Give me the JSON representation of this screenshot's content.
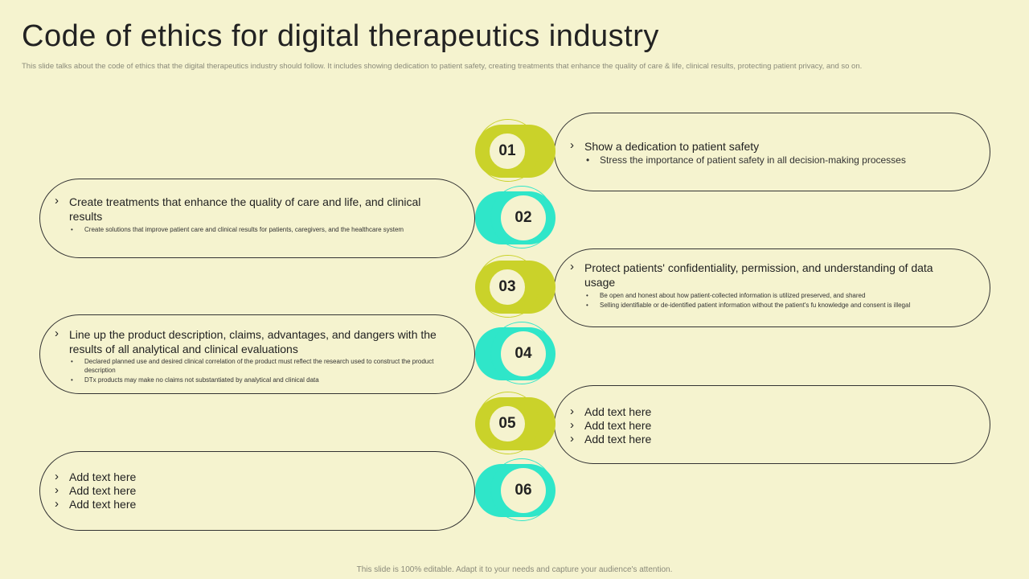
{
  "header": {
    "title": "Code of ethics for digital therapeutics industry",
    "subtitle": "This slide talks about the code of ethics that the digital therapeutics industry should follow. It includes showing dedication to patient safety, creating treatments that enhance the quality of care & life, clinical results, protecting patient privacy, and so on."
  },
  "steps": [
    {
      "number": "01",
      "heading": "Show a dedication to patient safety",
      "bullets": [
        "Stress the importance of patient safety in all  decision-making processes"
      ]
    },
    {
      "number": "02",
      "heading": "Create treatments that enhance the quality of care and life, and clinical results",
      "bullets": [
        "Create solutions that improve patient care and clinical results for patients, caregivers, and the healthcare system"
      ]
    },
    {
      "number": "03",
      "heading": "Protect patients' confidentiality, permission, and understanding of data usage",
      "bullets": [
        "Be open and honest about how patient-collected information is utilized preserved, and shared",
        "Selling identifiable or de-identified patient information without the patient's fu knowledge and consent is illegal"
      ]
    },
    {
      "number": "04",
      "heading": "Line up the product description, claims, advantages, and dangers with the results of all analytical and clinical evaluations",
      "bullets": [
        "Declared planned use and desired clinical correlation of the product must reflect the research used to construct the product description",
        "DTx products may make no claims not substantiated by analytical and clinical data"
      ]
    },
    {
      "number": "05",
      "lines": [
        "Add text here",
        "Add text here",
        "Add text here"
      ]
    },
    {
      "number": "06",
      "lines": [
        "Add text here",
        "Add text here",
        "Add text here"
      ]
    }
  ],
  "footer": "This slide is 100% editable. Adapt it to your needs and capture your audience's attention.",
  "colors": {
    "background": "#f5f3cf",
    "lime": "#cad22a",
    "cyan": "#2fe6c9"
  }
}
